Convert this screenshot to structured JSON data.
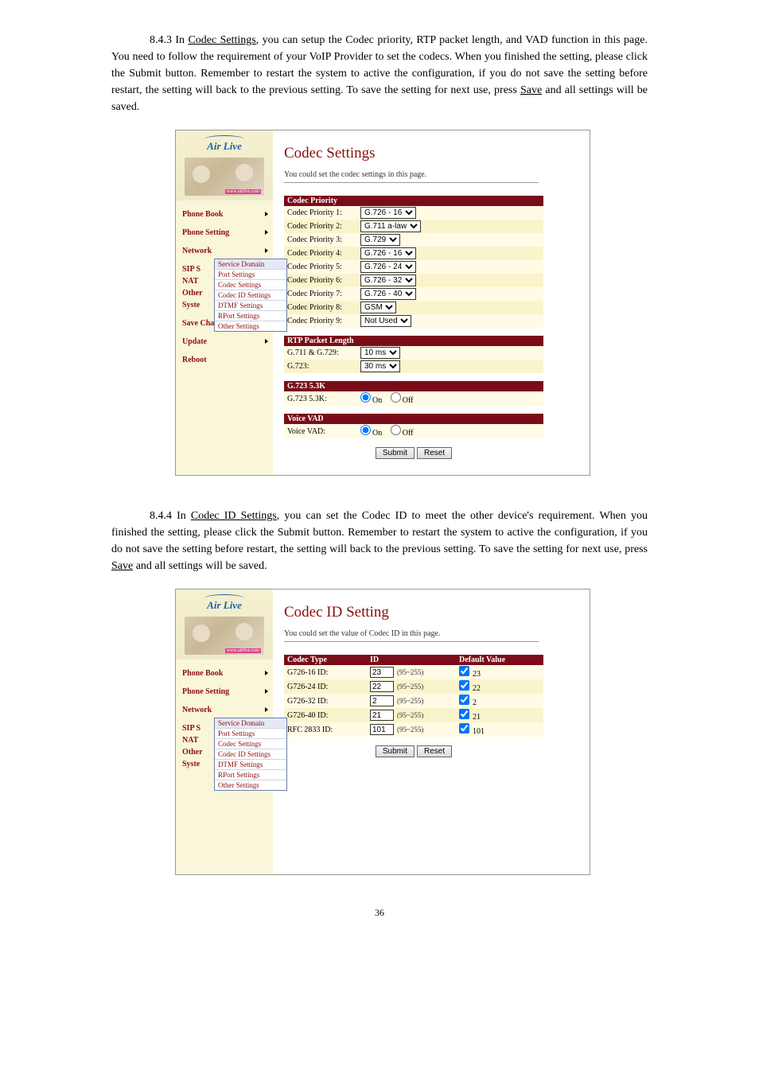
{
  "para1": {
    "pre": "8.4.3 In ",
    "link1": "Codec Settings",
    "mid1": ", you can setup the Codec priority, RTP packet length, and VAD function in this page. You need to follow the requirement of your VoIP Provider to set the codecs. When you finished the setting, please click the Submit button. Remember to restart the system to active the configuration, if you do not save the setting before restart, the setting will back to the previous setting. To save the setting for next use, press ",
    "link2": "Save",
    "mid2": " and all settings will be saved."
  },
  "para2": {
    "pre": "8.4.4 In ",
    "link1": "Codec ID Settings",
    "mid1": ", you can set the Codec ID to meet the other device's requirement. When you finished the setting, please click the Submit button. Remember to restart the system to active the configuration, if you do not save the setting before restart, the setting will back to the previous setting. To save the setting for next use, press ",
    "link2": "Save",
    "mid2": " and all settings will be saved."
  },
  "logo": {
    "brand": "Air Live",
    "url": "www.airlive.com"
  },
  "nav": {
    "phone_book": "Phone Book",
    "phone_setting": "Phone Setting",
    "network": "Network",
    "sip": "SIP S",
    "nat": "NAT",
    "other": "Other",
    "syste": "Syste",
    "save_change": "Save Change",
    "update": "Update",
    "reboot": "Reboot"
  },
  "submenu": {
    "service_domain": "Service Domain",
    "port_settings": "Port Settings",
    "codec_settings": "Codec Settings",
    "codec_id_settings": "Codec ID Settings",
    "dtmf_settings": "DTMF Settings",
    "rport_settings": "RPort Settings",
    "other_settings": "Other Settings"
  },
  "codec_page": {
    "title": "Codec Settings",
    "subtitle": "You could set the codec settings in this page.",
    "priority_hdr": "Codec Priority",
    "rows": [
      {
        "label": "Codec Priority 1:",
        "value": "G.726 - 16"
      },
      {
        "label": "Codec Priority 2:",
        "value": "G.711 a-law"
      },
      {
        "label": "Codec Priority 3:",
        "value": "G.729"
      },
      {
        "label": "Codec Priority 4:",
        "value": "G.726 - 16"
      },
      {
        "label": "Codec Priority 5:",
        "value": "G.726 - 24"
      },
      {
        "label": "Codec Priority 6:",
        "value": "G.726 - 32"
      },
      {
        "label": "Codec Priority 7:",
        "value": "G.726 - 40"
      },
      {
        "label": "Codec Priority 8:",
        "value": "GSM"
      },
      {
        "label": "Codec Priority 9:",
        "value": "Not Used"
      }
    ],
    "rtp_hdr": "RTP Packet Length",
    "rtp_rows": [
      {
        "label": "G.711 & G.729:",
        "value": "10 ms"
      },
      {
        "label": "G.723:",
        "value": "30 ms"
      }
    ],
    "g723_hdr": "G.723 5.3K",
    "g723_label": "G.723 5.3K:",
    "vad_hdr": "Voice VAD",
    "vad_label": "Voice VAD:",
    "on": "On",
    "off": "Off",
    "submit": "Submit",
    "reset": "Reset"
  },
  "codecid_page": {
    "title": "Codec ID Setting",
    "subtitle": "You could set the value of Codec ID in this page.",
    "hdr_type": "Codec Type",
    "hdr_id": "ID",
    "hdr_def": "Default Value",
    "range": "(95~255)",
    "rows": [
      {
        "label": "G726-16 ID:",
        "value": "23",
        "def": "23"
      },
      {
        "label": "G726-24 ID:",
        "value": "22",
        "def": "22"
      },
      {
        "label": "G726-32 ID:",
        "value": "2",
        "def": "2"
      },
      {
        "label": "G726-40 ID:",
        "value": "21",
        "def": "21"
      },
      {
        "label": "RFC 2833 ID:",
        "value": "101",
        "def": "101"
      }
    ],
    "submit": "Submit",
    "reset": "Reset"
  },
  "page_number": "36",
  "colors": {
    "sidebar_bg": "#faf6d9",
    "dark_red": "#7a0c19",
    "nav_red": "#8a0f0f",
    "row_even": "#fffbe4",
    "row_odd": "#faf4cd"
  }
}
